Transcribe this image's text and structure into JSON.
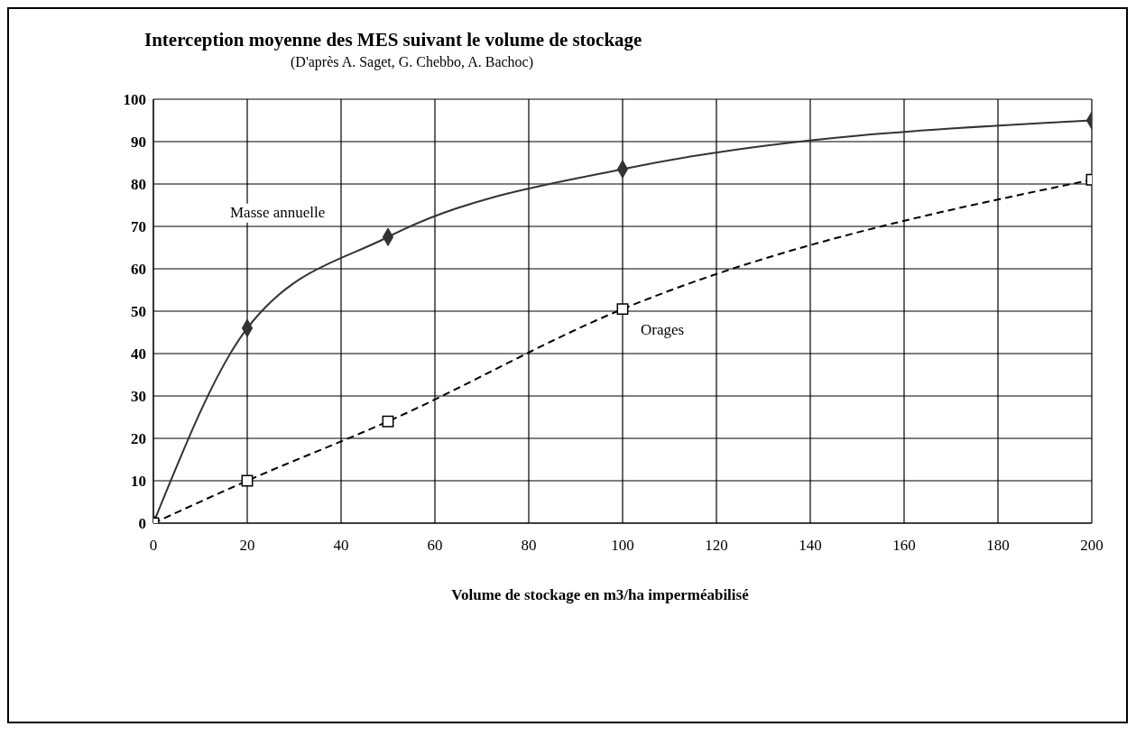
{
  "chart_data": {
    "type": "line",
    "title": "Interception moyenne des MES suivant le volume de stockage",
    "subtitle": "(D'après A. Saget, G. Chebbo, A. Bachoc)",
    "xlabel": "Volume de stockage en m3/ha imperméabilisé",
    "x": [
      0,
      20,
      50,
      100,
      200
    ],
    "series": [
      {
        "name": "Masse annuelle",
        "color": "#333333",
        "values": [
          0,
          46,
          67.5,
          83.5,
          95
        ],
        "marker": "diamond",
        "line_style": "solid"
      },
      {
        "name": "Orages",
        "color": "#000000",
        "values": [
          0,
          10,
          24,
          50.5,
          81
        ],
        "marker": "square",
        "line_style": "dashed"
      }
    ],
    "xlim": [
      0,
      200
    ],
    "xticks": [
      0,
      20,
      40,
      60,
      80,
      100,
      120,
      140,
      160,
      180,
      200
    ],
    "ylim": [
      0,
      100
    ],
    "yticks": [
      0,
      10,
      20,
      30,
      40,
      50,
      60,
      70,
      80,
      90,
      100
    ],
    "grid": true,
    "legend": false
  }
}
